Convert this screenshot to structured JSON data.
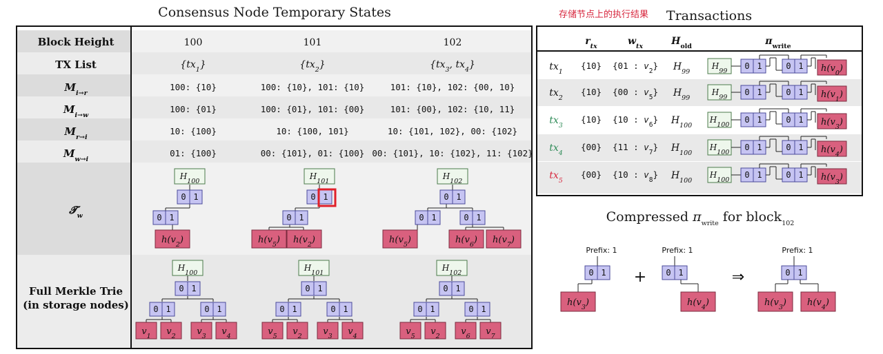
{
  "left_title": "Consensus Node Temporary States",
  "right_title": "Transactions",
  "note_cn": "存储节点上的执行结果",
  "compressed_title": "Compressed π_write for block_102",
  "colors": {
    "hash_fill": "#eef7ec",
    "hash_stroke": "#4a7a4a",
    "bit_fill": "#c6c4f2",
    "bit_stroke": "#4a4a9a",
    "leaf_fill": "#d9607e",
    "leaf_stroke": "#7a2a3e",
    "band_dark": "#dcdcdc",
    "band_light": "#ececec",
    "green_tx": "#2e8b57",
    "red_tx": "#d7263d",
    "highlight": "#e0202a"
  },
  "states_table": {
    "row_labels": [
      "Block Height",
      "TX List",
      "M_{i→r}",
      "M_{i→w}",
      "M_{r→i}",
      "M_{w→i}",
      "T_w",
      "Full Merkle Trie (in storage nodes)"
    ],
    "full_trie_label_lines": [
      "Full Merkle Trie",
      "(in storage nodes)"
    ],
    "columns": [
      {
        "height": "100",
        "tx_list": "{tx1}",
        "m_ir": "100: {10}",
        "m_iw": "100: {01}",
        "m_ri": "10: {100}",
        "m_wi": "01: {100}"
      },
      {
        "height": "101",
        "tx_list": "{tx2}",
        "m_ir": "100: {10}, 101: {10}",
        "m_iw": "100: {01}, 101: {00}",
        "m_ri": "10: {100, 101}",
        "m_wi": "00: {101}, 01: {100}"
      },
      {
        "height": "102",
        "tx_list": "{tx3, tx4}",
        "m_ir": "101: {10}, 102: {00, 10}",
        "m_iw": "101: {00}, 102: {10, 11}",
        "m_ri": "10: {101, 102}, 00: {102}",
        "m_wi": "00: {101}, 10: {102}, 11: {102}"
      }
    ],
    "tw_trees": [
      {
        "root": "H100",
        "leaves": [
          "h(v2)"
        ]
      },
      {
        "root": "H101",
        "leaves": [
          "h(v5)",
          "h(v2)"
        ]
      },
      {
        "root": "H102",
        "leaves": [
          "h(v5)",
          "h(v6)",
          "h(v7)"
        ]
      }
    ],
    "full_tries": [
      {
        "root": "H100",
        "leaves": [
          "v1",
          "v2",
          "v3",
          "v4"
        ]
      },
      {
        "root": "H101",
        "leaves": [
          "v5",
          "v2",
          "v3",
          "v4"
        ]
      },
      {
        "root": "H102",
        "leaves": [
          "v5",
          "v2",
          "v6",
          "v7"
        ]
      }
    ]
  },
  "tx_table": {
    "headers": [
      "r_tx",
      "w_tx",
      "H_old",
      "π_write"
    ],
    "rows": [
      {
        "tx": "tx1",
        "r": "{10}",
        "w": "{01 : v2}",
        "h": "H99",
        "proof_root": "H99",
        "proof_leaf": "h(v0)",
        "color": "black"
      },
      {
        "tx": "tx2",
        "r": "{10}",
        "w": "{00 : v5}",
        "h": "H99",
        "proof_root": "H99",
        "proof_leaf": "h(v1)",
        "color": "black"
      },
      {
        "tx": "tx3",
        "r": "{10}",
        "w": "{10 : v6}",
        "h": "H100",
        "proof_root": "H100",
        "proof_leaf": "h(v3)",
        "color": "green"
      },
      {
        "tx": "tx4",
        "r": "{00}",
        "w": "{11 : v7}",
        "h": "H100",
        "proof_root": "H100",
        "proof_leaf": "h(v4)",
        "color": "green"
      },
      {
        "tx": "tx5",
        "r": "{00}",
        "w": "{10 : v8}",
        "h": "H100",
        "proof_root": "H100",
        "proof_leaf": "h(v3)",
        "color": "red"
      }
    ]
  },
  "compressed": {
    "prefix_label": "Prefix: 1",
    "bits": [
      "0",
      "1"
    ],
    "left_leaf": "h(v3)",
    "mid_leaf": "h(v4)",
    "result_leaves": [
      "h(v3)",
      "h(v4)"
    ],
    "plus": "+",
    "implies": "⇒"
  }
}
